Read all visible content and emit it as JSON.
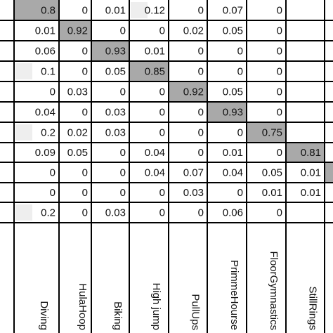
{
  "chart_data": {
    "type": "heatmap",
    "title": "",
    "x_labels": [
      "Diving",
      "HulaHoop",
      "Biking",
      "High jump",
      "PullUps",
      "PrimmeHourse",
      "FloorGymnastics",
      "StillRings",
      "..."
    ],
    "row_labels": [],
    "values": [
      [
        0.8,
        0,
        0.01,
        0.12,
        0,
        0.07,
        0
      ],
      [
        0.01,
        0.92,
        0,
        0,
        0.02,
        0.05,
        0
      ],
      [
        0.06,
        0,
        0.93,
        0.01,
        0,
        0,
        0
      ],
      [
        0.1,
        0,
        0.05,
        0.85,
        0,
        0,
        0
      ],
      [
        0,
        0.03,
        0,
        0,
        0.92,
        0.05,
        0
      ],
      [
        0.04,
        0,
        0.03,
        0,
        0,
        0.93,
        0
      ],
      [
        0.2,
        0.02,
        0.03,
        0,
        0,
        0,
        0.75
      ],
      [
        0.09,
        0.05,
        0,
        0.04,
        0,
        0.01,
        0,
        0.81
      ],
      [
        0,
        0,
        0,
        0.04,
        0.07,
        0.04,
        0.05,
        0.01
      ],
      [
        0,
        0,
        0,
        0,
        0.03,
        0,
        0.01,
        0.01
      ],
      [
        0.2,
        0,
        0.03,
        0,
        0,
        0.06,
        0
      ]
    ],
    "highlight_color": "#a9a9a9",
    "light_color": "#eeeeee",
    "grid": true
  }
}
